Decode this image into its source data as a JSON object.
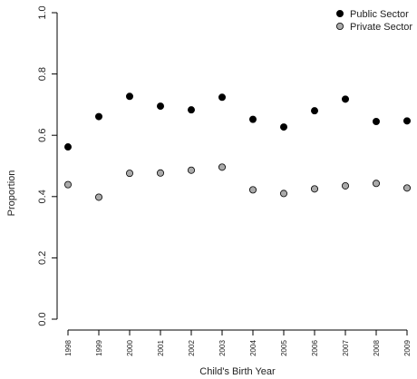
{
  "chart_data": {
    "type": "scatter",
    "title": "",
    "xlabel": "Child's Birth Year",
    "ylabel": "Proportion",
    "categories": [
      "1998",
      "1999",
      "2000",
      "2001",
      "2002",
      "2003",
      "2004",
      "2005",
      "2006",
      "2007",
      "2008",
      "2009"
    ],
    "ylim": [
      0,
      1
    ],
    "yticks": [
      "0.0",
      "0.2",
      "0.4",
      "0.6",
      "0.8",
      "1.0"
    ],
    "grid": false,
    "legend_position": "top-right",
    "series": [
      {
        "name": "Public Sector",
        "color": "#000000",
        "values": [
          0.562,
          0.661,
          0.727,
          0.695,
          0.683,
          0.724,
          0.652,
          0.627,
          0.68,
          0.718,
          0.645,
          0.647
        ]
      },
      {
        "name": "Private Sector",
        "color": "#aaaaaa",
        "values": [
          0.439,
          0.398,
          0.476,
          0.477,
          0.486,
          0.496,
          0.422,
          0.41,
          0.425,
          0.435,
          0.443,
          0.428
        ]
      }
    ]
  }
}
